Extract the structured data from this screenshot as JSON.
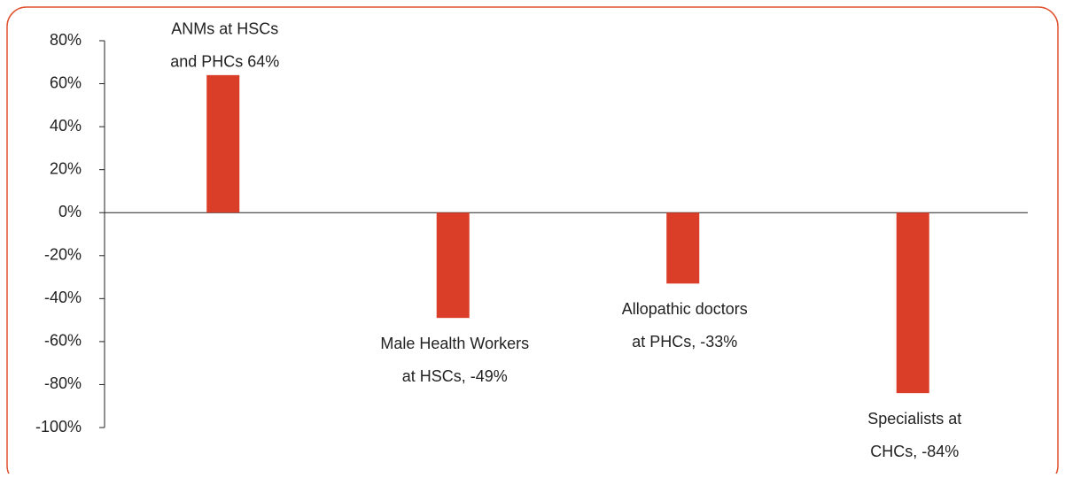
{
  "chart_data": {
    "type": "bar",
    "values": [
      64,
      -49,
      -33,
      -84
    ],
    "value_labels": [
      [
        "ANMs at HSCs",
        "and PHCs 64%"
      ],
      [
        "Male Health Workers",
        "at HSCs, -49%"
      ],
      [
        "Allopathic doctors",
        "at PHCs, -33%"
      ],
      [
        "Specialists at",
        "CHCs, -84%"
      ]
    ],
    "color": "#db3e28",
    "ylim": [
      -100,
      80
    ],
    "yticks": [
      {
        "value": -100,
        "label": "-100%"
      },
      {
        "value": -80,
        "label": "-80%"
      },
      {
        "value": -60,
        "label": "-60%"
      },
      {
        "value": -40,
        "label": "-40%"
      },
      {
        "value": -20,
        "label": "-20%"
      },
      {
        "value": 0,
        "label": "0%"
      },
      {
        "value": 20,
        "label": "20%"
      },
      {
        "value": 40,
        "label": "40%"
      },
      {
        "value": 60,
        "label": "60%"
      },
      {
        "value": 80,
        "label": "80%"
      }
    ],
    "grid": false
  }
}
